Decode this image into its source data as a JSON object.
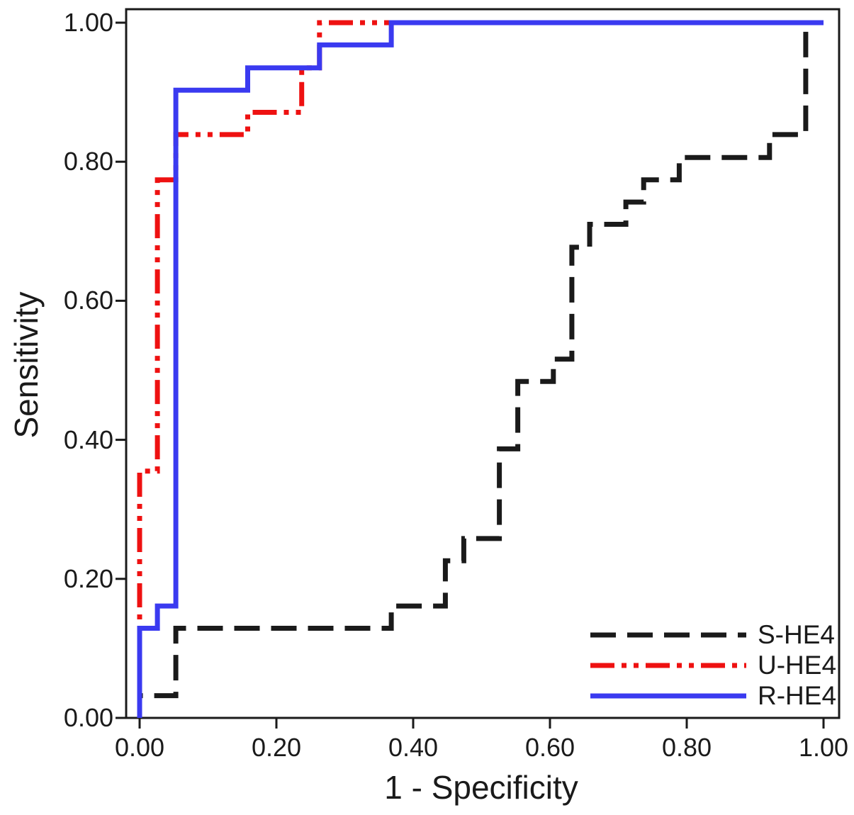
{
  "figure": {
    "background": "#ffffff",
    "axis_color": "#1a1a1a",
    "text_color": "#1a1a1a"
  },
  "chart_data": {
    "type": "line",
    "subtype": "roc-step-curves",
    "title": "",
    "xlabel": "1 - Specificity",
    "ylabel": "Sensitivity",
    "xlim": [
      0,
      1
    ],
    "ylim": [
      0,
      1
    ],
    "grid": false,
    "legend_position": "bottom-right",
    "x_ticks": [
      {
        "value": 0.0,
        "label": "0.00"
      },
      {
        "value": 0.2,
        "label": "0.20"
      },
      {
        "value": 0.4,
        "label": "0.40"
      },
      {
        "value": 0.6,
        "label": "0.60"
      },
      {
        "value": 0.8,
        "label": "0.80"
      },
      {
        "value": 1.0,
        "label": "1.00"
      }
    ],
    "y_ticks": [
      {
        "value": 0.0,
        "label": "0.00"
      },
      {
        "value": 0.2,
        "label": "0.20"
      },
      {
        "value": 0.4,
        "label": "0.40"
      },
      {
        "value": 0.6,
        "label": "0.60"
      },
      {
        "value": 0.8,
        "label": "0.80"
      },
      {
        "value": 1.0,
        "label": "1.00"
      }
    ],
    "series": [
      {
        "name": "S-HE4",
        "color": "#1a1a1a",
        "dash": "long-dash",
        "points": [
          [
            0,
            0
          ],
          [
            0,
            0.032
          ],
          [
            0.053,
            0.032
          ],
          [
            0.053,
            0.129
          ],
          [
            0.368,
            0.129
          ],
          [
            0.368,
            0.161
          ],
          [
            0.447,
            0.161
          ],
          [
            0.447,
            0.226
          ],
          [
            0.474,
            0.226
          ],
          [
            0.474,
            0.258
          ],
          [
            0.526,
            0.258
          ],
          [
            0.526,
            0.387
          ],
          [
            0.553,
            0.387
          ],
          [
            0.553,
            0.484
          ],
          [
            0.605,
            0.484
          ],
          [
            0.605,
            0.516
          ],
          [
            0.632,
            0.516
          ],
          [
            0.632,
            0.677
          ],
          [
            0.658,
            0.677
          ],
          [
            0.658,
            0.71
          ],
          [
            0.711,
            0.71
          ],
          [
            0.711,
            0.742
          ],
          [
            0.737,
            0.742
          ],
          [
            0.737,
            0.774
          ],
          [
            0.789,
            0.774
          ],
          [
            0.789,
            0.806
          ],
          [
            0.921,
            0.806
          ],
          [
            0.921,
            0.839
          ],
          [
            0.974,
            0.839
          ],
          [
            0.974,
            1
          ],
          [
            1,
            1
          ]
        ]
      },
      {
        "name": "U-HE4",
        "color": "#ee1111",
        "dash": "dash-dot-dot",
        "points": [
          [
            0,
            0
          ],
          [
            0,
            0.355
          ],
          [
            0.026,
            0.355
          ],
          [
            0.026,
            0.774
          ],
          [
            0.053,
            0.774
          ],
          [
            0.053,
            0.839
          ],
          [
            0.158,
            0.839
          ],
          [
            0.158,
            0.871
          ],
          [
            0.237,
            0.871
          ],
          [
            0.237,
            0.935
          ],
          [
            0.263,
            0.935
          ],
          [
            0.263,
            1
          ],
          [
            1,
            1
          ]
        ]
      },
      {
        "name": "R-HE4",
        "color": "#3a3af0",
        "dash": "solid",
        "points": [
          [
            0,
            0
          ],
          [
            0,
            0.129
          ],
          [
            0.026,
            0.129
          ],
          [
            0.026,
            0.161
          ],
          [
            0.053,
            0.161
          ],
          [
            0.053,
            0.903
          ],
          [
            0.158,
            0.903
          ],
          [
            0.158,
            0.935
          ],
          [
            0.263,
            0.935
          ],
          [
            0.263,
            0.968
          ],
          [
            0.368,
            0.968
          ],
          [
            0.368,
            1
          ],
          [
            1,
            1
          ]
        ]
      }
    ],
    "legend_entries": [
      "S-HE4",
      "U-HE4",
      "R-HE4"
    ]
  }
}
